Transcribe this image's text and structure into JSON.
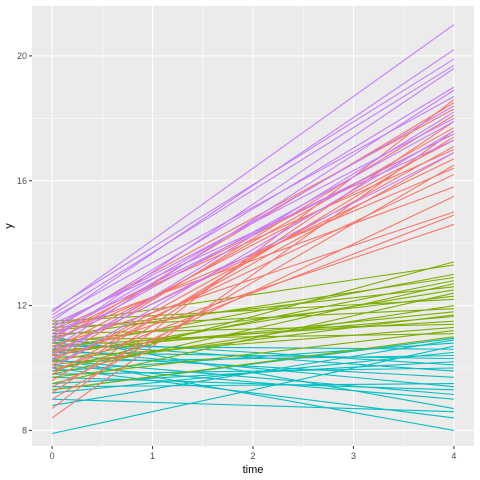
{
  "chart_data": {
    "type": "line",
    "xlabel": "time",
    "ylabel": "y",
    "xlim": [
      -0.2,
      4.2
    ],
    "ylim": [
      7.5,
      21.6
    ],
    "xticks": [
      0,
      1,
      2,
      3,
      4
    ],
    "xtick_labels": [
      "0",
      "1",
      "2",
      "3",
      "4"
    ],
    "yticks": [
      8,
      12,
      16,
      20
    ],
    "ytick_labels": [
      "8",
      "12",
      "16",
      "20"
    ],
    "grid": true,
    "legend": "none",
    "background": "#ebebeb",
    "colors": {
      "red": "#f8766d",
      "green": "#7cae00",
      "cyan": "#00bfc4",
      "purple": "#c77cff"
    },
    "series": [
      {
        "color": "cyan",
        "x": [
          0,
          4
        ],
        "y": [
          7.9,
          10.7
        ]
      },
      {
        "color": "cyan",
        "x": [
          0,
          4
        ],
        "y": [
          8.8,
          10.9
        ]
      },
      {
        "color": "cyan",
        "x": [
          0,
          4
        ],
        "y": [
          9.0,
          8.6
        ]
      },
      {
        "color": "cyan",
        "x": [
          0,
          4
        ],
        "y": [
          9.2,
          10.5
        ]
      },
      {
        "color": "cyan",
        "x": [
          0,
          4
        ],
        "y": [
          9.4,
          9.5
        ]
      },
      {
        "color": "cyan",
        "x": [
          0,
          4
        ],
        "y": [
          9.5,
          10.2
        ]
      },
      {
        "color": "cyan",
        "x": [
          0,
          4
        ],
        "y": [
          9.7,
          9.3
        ]
      },
      {
        "color": "cyan",
        "x": [
          0,
          4
        ],
        "y": [
          9.8,
          10.0
        ]
      },
      {
        "color": "cyan",
        "x": [
          0,
          4
        ],
        "y": [
          9.9,
          10.8
        ]
      },
      {
        "color": "cyan",
        "x": [
          0,
          4
        ],
        "y": [
          10.0,
          8.4
        ]
      },
      {
        "color": "cyan",
        "x": [
          0,
          4
        ],
        "y": [
          10.1,
          9.0
        ]
      },
      {
        "color": "cyan",
        "x": [
          0,
          4
        ],
        "y": [
          10.2,
          10.4
        ]
      },
      {
        "color": "cyan",
        "x": [
          0,
          4
        ],
        "y": [
          10.3,
          8.0
        ]
      },
      {
        "color": "cyan",
        "x": [
          0,
          4
        ],
        "y": [
          10.4,
          9.7
        ]
      },
      {
        "color": "cyan",
        "x": [
          0,
          4
        ],
        "y": [
          10.5,
          10.3
        ]
      },
      {
        "color": "cyan",
        "x": [
          0,
          4
        ],
        "y": [
          10.6,
          9.4
        ]
      },
      {
        "color": "cyan",
        "x": [
          0,
          4
        ],
        "y": [
          10.7,
          10.6
        ]
      },
      {
        "color": "cyan",
        "x": [
          0,
          4
        ],
        "y": [
          10.8,
          9.9
        ]
      },
      {
        "color": "cyan",
        "x": [
          0,
          4
        ],
        "y": [
          10.9,
          10.1
        ]
      },
      {
        "color": "cyan",
        "x": [
          0,
          4
        ],
        "y": [
          11.0,
          8.7
        ]
      },
      {
        "color": "cyan",
        "x": [
          0,
          4
        ],
        "y": [
          9.3,
          10.95
        ]
      },
      {
        "color": "cyan",
        "x": [
          0,
          4
        ],
        "y": [
          10.25,
          9.15
        ]
      },
      {
        "color": "green",
        "x": [
          0,
          4
        ],
        "y": [
          9.3,
          11.0
        ]
      },
      {
        "color": "green",
        "x": [
          0,
          4
        ],
        "y": [
          9.5,
          12.4
        ]
      },
      {
        "color": "green",
        "x": [
          0,
          4
        ],
        "y": [
          9.7,
          11.2
        ]
      },
      {
        "color": "green",
        "x": [
          0,
          4
        ],
        "y": [
          9.9,
          13.4
        ]
      },
      {
        "color": "green",
        "x": [
          0,
          4
        ],
        "y": [
          10.0,
          12.0
        ]
      },
      {
        "color": "green",
        "x": [
          0,
          4
        ],
        "y": [
          10.1,
          11.7
        ]
      },
      {
        "color": "green",
        "x": [
          0,
          4
        ],
        "y": [
          10.2,
          12.8
        ]
      },
      {
        "color": "green",
        "x": [
          0,
          4
        ],
        "y": [
          10.3,
          11.3
        ]
      },
      {
        "color": "green",
        "x": [
          0,
          4
        ],
        "y": [
          10.4,
          12.5
        ]
      },
      {
        "color": "green",
        "x": [
          0,
          4
        ],
        "y": [
          10.5,
          11.8
        ]
      },
      {
        "color": "green",
        "x": [
          0,
          4
        ],
        "y": [
          10.6,
          13.0
        ]
      },
      {
        "color": "green",
        "x": [
          0,
          4
        ],
        "y": [
          10.7,
          11.5
        ]
      },
      {
        "color": "green",
        "x": [
          0,
          4
        ],
        "y": [
          10.8,
          12.3
        ]
      },
      {
        "color": "green",
        "x": [
          0,
          4
        ],
        "y": [
          10.9,
          11.1
        ]
      },
      {
        "color": "green",
        "x": [
          0,
          4
        ],
        "y": [
          11.0,
          12.9
        ]
      },
      {
        "color": "green",
        "x": [
          0,
          4
        ],
        "y": [
          11.1,
          11.4
        ]
      },
      {
        "color": "green",
        "x": [
          0,
          4
        ],
        "y": [
          11.2,
          12.6
        ]
      },
      {
        "color": "green",
        "x": [
          0,
          4
        ],
        "y": [
          11.3,
          11.9
        ]
      },
      {
        "color": "green",
        "x": [
          0,
          4
        ],
        "y": [
          11.4,
          13.3
        ]
      },
      {
        "color": "green",
        "x": [
          0,
          4
        ],
        "y": [
          11.5,
          12.2
        ]
      },
      {
        "color": "green",
        "x": [
          0,
          4
        ],
        "y": [
          10.55,
          11.65
        ]
      },
      {
        "color": "green",
        "x": [
          0,
          4
        ],
        "y": [
          9.8,
          12.7
        ]
      },
      {
        "color": "red",
        "x": [
          0,
          4
        ],
        "y": [
          8.4,
          17.6
        ]
      },
      {
        "color": "red",
        "x": [
          0,
          4
        ],
        "y": [
          8.7,
          18.6
        ]
      },
      {
        "color": "red",
        "x": [
          0,
          4
        ],
        "y": [
          9.0,
          16.5
        ]
      },
      {
        "color": "red",
        "x": [
          0,
          4
        ],
        "y": [
          9.2,
          17.9
        ]
      },
      {
        "color": "red",
        "x": [
          0,
          4
        ],
        "y": [
          9.4,
          15.5
        ]
      },
      {
        "color": "red",
        "x": [
          0,
          4
        ],
        "y": [
          9.6,
          17.4
        ]
      },
      {
        "color": "red",
        "x": [
          0,
          4
        ],
        "y": [
          9.8,
          16.9
        ]
      },
      {
        "color": "red",
        "x": [
          0,
          4
        ],
        "y": [
          9.9,
          14.9
        ]
      },
      {
        "color": "red",
        "x": [
          0,
          4
        ],
        "y": [
          10.0,
          17.1
        ]
      },
      {
        "color": "red",
        "x": [
          0,
          4
        ],
        "y": [
          10.1,
          16.2
        ]
      },
      {
        "color": "red",
        "x": [
          0,
          4
        ],
        "y": [
          10.2,
          18.1
        ]
      },
      {
        "color": "red",
        "x": [
          0,
          4
        ],
        "y": [
          10.3,
          14.6
        ]
      },
      {
        "color": "red",
        "x": [
          0,
          4
        ],
        "y": [
          10.4,
          17.7
        ]
      },
      {
        "color": "red",
        "x": [
          0,
          4
        ],
        "y": [
          10.5,
          16.7
        ]
      },
      {
        "color": "red",
        "x": [
          0,
          4
        ],
        "y": [
          10.6,
          17.3
        ]
      },
      {
        "color": "red",
        "x": [
          0,
          4
        ],
        "y": [
          10.7,
          15.0
        ]
      },
      {
        "color": "red",
        "x": [
          0,
          4
        ],
        "y": [
          10.8,
          18.5
        ]
      },
      {
        "color": "red",
        "x": [
          0,
          4
        ],
        "y": [
          10.9,
          16.4
        ]
      },
      {
        "color": "red",
        "x": [
          0,
          4
        ],
        "y": [
          11.0,
          17.5
        ]
      },
      {
        "color": "red",
        "x": [
          0,
          4
        ],
        "y": [
          11.1,
          15.8
        ]
      },
      {
        "color": "red",
        "x": [
          0,
          4
        ],
        "y": [
          11.2,
          17.0
        ]
      },
      {
        "color": "red",
        "x": [
          0,
          4
        ],
        "y": [
          11.3,
          18.3
        ]
      },
      {
        "color": "purple",
        "x": [
          0,
          4
        ],
        "y": [
          10.0,
          17.6
        ]
      },
      {
        "color": "purple",
        "x": [
          0,
          4
        ],
        "y": [
          10.3,
          18.2
        ]
      },
      {
        "color": "purple",
        "x": [
          0,
          4
        ],
        "y": [
          10.6,
          18.9
        ]
      },
      {
        "color": "purple",
        "x": [
          0,
          4
        ],
        "y": [
          10.8,
          17.9
        ]
      },
      {
        "color": "purple",
        "x": [
          0,
          4
        ],
        "y": [
          10.9,
          19.6
        ]
      },
      {
        "color": "purple",
        "x": [
          0,
          4
        ],
        "y": [
          11.0,
          18.4
        ]
      },
      {
        "color": "purple",
        "x": [
          0,
          4
        ],
        "y": [
          11.1,
          17.5
        ]
      },
      {
        "color": "purple",
        "x": [
          0,
          4
        ],
        "y": [
          11.2,
          19.0
        ]
      },
      {
        "color": "purple",
        "x": [
          0,
          4
        ],
        "y": [
          11.3,
          18.0
        ]
      },
      {
        "color": "purple",
        "x": [
          0,
          4
        ],
        "y": [
          11.4,
          17.3
        ]
      },
      {
        "color": "purple",
        "x": [
          0,
          4
        ],
        "y": [
          11.5,
          20.2
        ]
      },
      {
        "color": "purple",
        "x": [
          0,
          4
        ],
        "y": [
          11.6,
          18.7
        ]
      },
      {
        "color": "purple",
        "x": [
          0,
          4
        ],
        "y": [
          11.7,
          19.7
        ]
      },
      {
        "color": "purple",
        "x": [
          0,
          4
        ],
        "y": [
          11.8,
          21.0
        ]
      },
      {
        "color": "purple",
        "x": [
          0,
          4
        ],
        "y": [
          11.85,
          19.9
        ]
      },
      {
        "color": "purple",
        "x": [
          0,
          4
        ],
        "y": [
          10.45,
          16.9
        ]
      }
    ]
  }
}
